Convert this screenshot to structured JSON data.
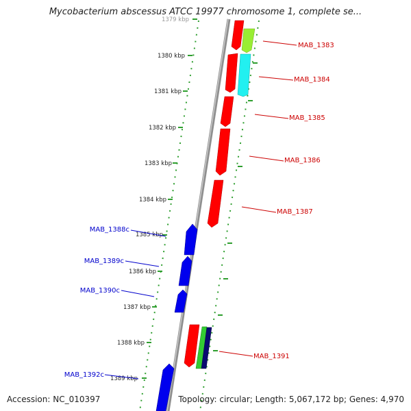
{
  "title": "Mycobacterium abscessus ATCC 19977 chromosome 1, complete se...",
  "accession_text": "Accession: NC_010397",
  "summary_text": "Topology: circular; Length: 5,067,172 bp; Genes: 4,970",
  "colors": {
    "backbone": "#9a9a9a",
    "dots": "#2e9e2e",
    "forward_label": "#cc0000",
    "reverse_label": "#0000cc",
    "tick_text": "#222222"
  },
  "ticks": [
    "1379 kbp",
    "1380 kbp",
    "1381 kbp",
    "1382 kbp",
    "1383 kbp",
    "1384 kbp",
    "1385 kbp",
    "1386 kbp",
    "1387 kbp",
    "1388 kbp",
    "1389 kbp"
  ],
  "labels": [
    {
      "text": "MAB_1383",
      "strand": "forward"
    },
    {
      "text": "MAB_1384",
      "strand": "forward"
    },
    {
      "text": "MAB_1385",
      "strand": "forward"
    },
    {
      "text": "MAB_1386",
      "strand": "forward"
    },
    {
      "text": "MAB_1387",
      "strand": "forward"
    },
    {
      "text": "MAB_1388c",
      "strand": "reverse"
    },
    {
      "text": "MAB_1389c",
      "strand": "reverse"
    },
    {
      "text": "MAB_1390c",
      "strand": "reverse"
    },
    {
      "text": "MAB_1391",
      "strand": "forward"
    },
    {
      "text": "MAB_1392c",
      "strand": "reverse"
    }
  ]
}
